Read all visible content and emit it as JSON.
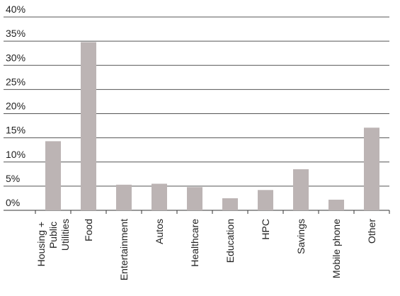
{
  "chart_data": {
    "type": "bar",
    "categories": [
      "Housing + Public Utilities",
      "Food",
      "Entertainment",
      "Autos",
      "Healthcare",
      "Education",
      "HPC",
      "Savings",
      "Mobile phone",
      "Other"
    ],
    "values": [
      14.3,
      34.8,
      5.3,
      5.5,
      4.8,
      2.5,
      4.2,
      8.5,
      2.2,
      17.1
    ],
    "color": "#bcb4b4",
    "ylim": [
      0,
      40
    ],
    "yticks": [
      {
        "value": 0,
        "label": "0%"
      },
      {
        "value": 5,
        "label": "5%"
      },
      {
        "value": 10,
        "label": "10%"
      },
      {
        "value": 15,
        "label": "15%"
      },
      {
        "value": 20,
        "label": "20%"
      },
      {
        "value": 25,
        "label": "25%"
      },
      {
        "value": 30,
        "label": "30%"
      },
      {
        "value": 35,
        "label": "35%"
      },
      {
        "value": 40,
        "label": "40%"
      }
    ],
    "grid": true
  }
}
